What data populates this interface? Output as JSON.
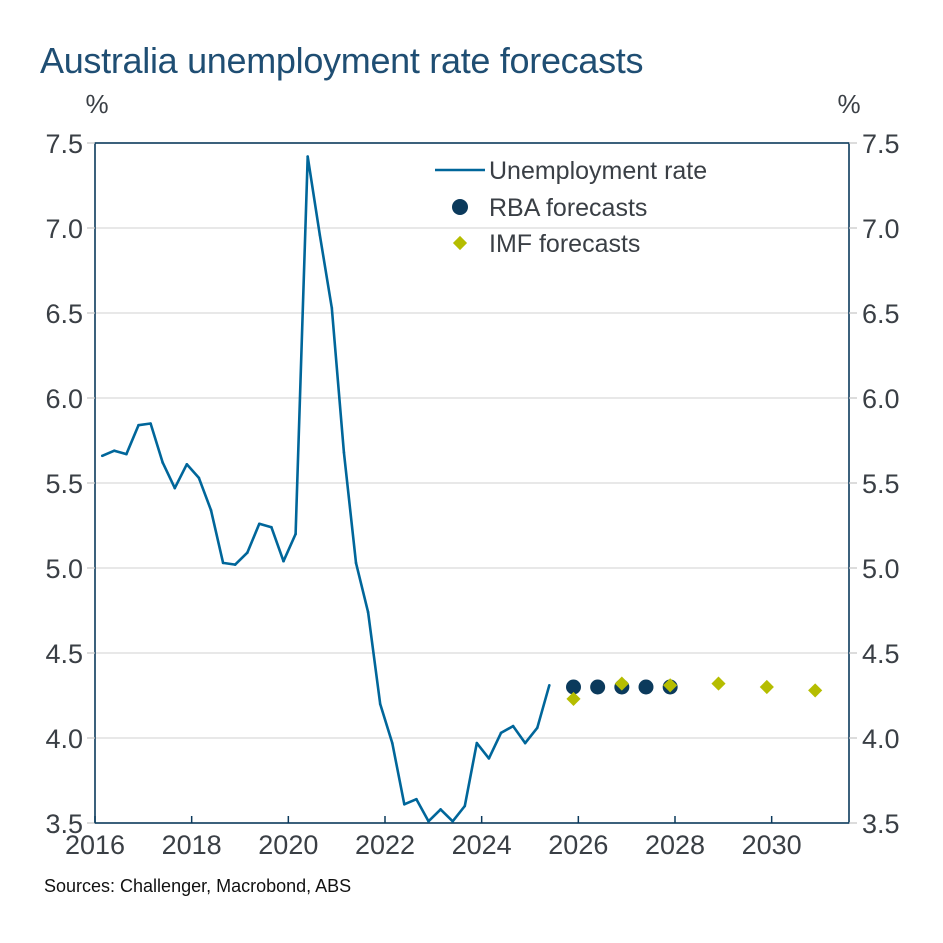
{
  "chart_data": {
    "type": "line",
    "title": "Australia unemployment rate forecasts",
    "source": "Sources: Challenger, Macrobond, ABS",
    "xlabel": "",
    "ylabel_left": "%",
    "ylabel_right": "%",
    "xlim": [
      2016,
      2031.6
    ],
    "ylim": [
      3.5,
      7.5
    ],
    "x_ticks": [
      "2016",
      "2018",
      "2020",
      "2022",
      "2024",
      "2026",
      "2028",
      "2030"
    ],
    "y_ticks": [
      "3.5",
      "4.0",
      "4.5",
      "5.0",
      "5.5",
      "6.0",
      "6.5",
      "7.0",
      "7.5"
    ],
    "grid": "horizontal",
    "legend_position": "top-center",
    "series": [
      {
        "name": "Unemployment rate",
        "kind": "line",
        "color": "#00669a",
        "x": [
          2016.15,
          2016.4,
          2016.65,
          2016.9,
          2017.15,
          2017.4,
          2017.65,
          2017.9,
          2018.15,
          2018.4,
          2018.65,
          2018.9,
          2019.15,
          2019.4,
          2019.65,
          2019.9,
          2020.15,
          2020.4,
          2020.65,
          2020.9,
          2021.15,
          2021.4,
          2021.65,
          2021.9,
          2022.15,
          2022.4,
          2022.65,
          2022.9,
          2023.15,
          2023.4,
          2023.65,
          2023.9,
          2024.15,
          2024.4,
          2024.65,
          2024.9,
          2025.15,
          2025.4
        ],
        "values": [
          5.66,
          5.69,
          5.67,
          5.84,
          5.85,
          5.62,
          5.47,
          5.61,
          5.53,
          5.34,
          5.03,
          5.02,
          5.09,
          5.26,
          5.24,
          5.04,
          5.2,
          7.42,
          6.96,
          6.53,
          5.68,
          5.03,
          4.74,
          4.2,
          3.97,
          3.61,
          3.64,
          3.51,
          3.58,
          3.51,
          3.6,
          3.97,
          3.88,
          4.03,
          4.07,
          3.97,
          4.06,
          4.31
        ]
      },
      {
        "name": "RBA forecasts",
        "kind": "dot",
        "color": "#0b3a5c",
        "x": [
          2025.9,
          2026.4,
          2026.9,
          2027.4,
          2027.9
        ],
        "values": [
          4.3,
          4.3,
          4.3,
          4.3,
          4.3
        ]
      },
      {
        "name": "IMF forecasts",
        "kind": "diamond",
        "color": "#b5bd00",
        "x": [
          2025.9,
          2026.9,
          2027.9,
          2028.9,
          2029.9,
          2030.9
        ],
        "values": [
          4.23,
          4.32,
          4.31,
          4.32,
          4.3,
          4.28
        ]
      }
    ]
  }
}
